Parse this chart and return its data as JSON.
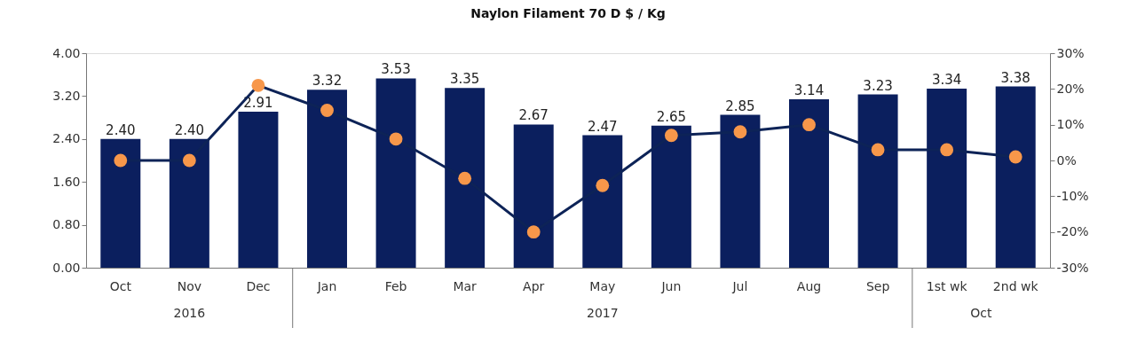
{
  "chart_data": {
    "type": "bar",
    "title": "Naylon Filament 70 D $ / Kg",
    "categories": [
      "Oct",
      "Nov",
      "Dec",
      "Jan",
      "Feb",
      "Mar",
      "Apr",
      "May",
      "Jun",
      "Jul",
      "Aug",
      "Sep",
      "1st wk",
      "2nd wk"
    ],
    "series": [
      {
        "color": "#0b1f5e",
        "values": [
          2.4,
          2.4,
          2.91,
          3.32,
          3.53,
          3.35,
          2.67,
          2.47,
          2.65,
          2.85,
          3.14,
          3.23,
          3.34,
          3.38
        ],
        "value_labels": [
          "2.40",
          "2.40",
          "2.91",
          "3.32",
          "3.53",
          "3.35",
          "2.67",
          "2.47",
          "2.65",
          "2.85",
          "3.14",
          "3.23",
          "3.34",
          "3.38"
        ]
      },
      {
        "type": "line",
        "axis": "y2",
        "color": "#0d2357",
        "marker": "circle",
        "colors": [
          "#f7974a",
          "#f7974a",
          "#f7974a",
          "#f7974a",
          "#f7974a",
          "#f7974a",
          "#f7974a",
          "#f7974a",
          "#f7974a",
          "#f7974a",
          "#f7974a",
          "#f7974a",
          "#f7974a",
          "#f7974a"
        ],
        "values": [
          0,
          0,
          21,
          14,
          6,
          -5,
          -20,
          -7,
          7,
          8,
          10,
          3,
          3,
          1
        ]
      }
    ],
    "ylim": [
      0,
      4
    ],
    "yticks": [
      {
        "value": 0,
        "label": "0.00"
      },
      {
        "value": 0.8,
        "label": "0.80"
      },
      {
        "value": 1.6,
        "label": "1.60"
      },
      {
        "value": 2.4,
        "label": "2.40"
      },
      {
        "value": 3.2,
        "label": "3.20"
      },
      {
        "value": 4,
        "label": "4.00"
      }
    ],
    "y2lim": [
      -30,
      30
    ],
    "y2ticks": [
      {
        "value": -30,
        "label": "-30%"
      },
      {
        "value": -20,
        "label": "-20%"
      },
      {
        "value": -10,
        "label": "-10%"
      },
      {
        "value": 0,
        "label": "0%"
      },
      {
        "value": 10,
        "label": "10%"
      },
      {
        "value": 20,
        "label": "20%"
      },
      {
        "value": 30,
        "label": "30%"
      }
    ],
    "annotations": [
      "2016",
      "2017",
      "Oct"
    ]
  }
}
